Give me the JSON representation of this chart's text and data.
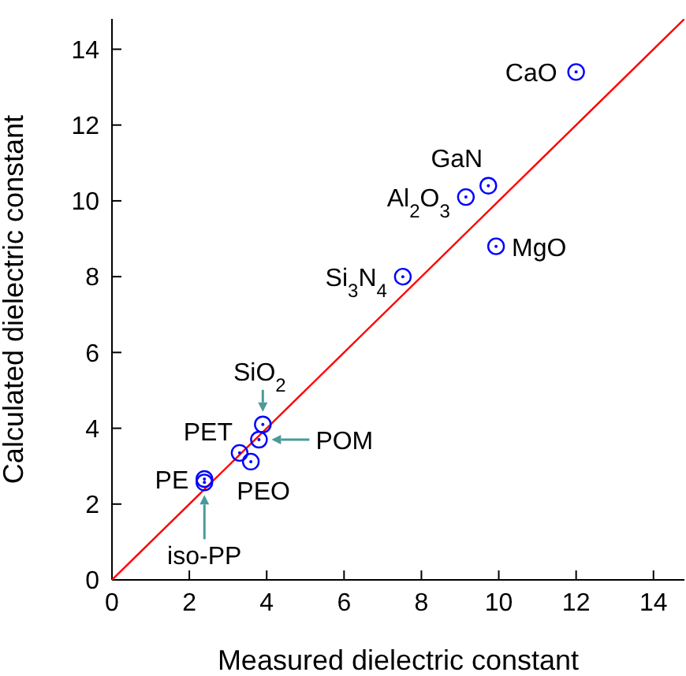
{
  "chart_data": {
    "type": "scatter",
    "xlabel": "Measured dielectric constant",
    "ylabel": "Calculated dielectric constant",
    "xlim": [
      0,
      14.8
    ],
    "ylim": [
      0,
      14.8
    ],
    "xticks": [
      0,
      2,
      4,
      6,
      8,
      10,
      12,
      14
    ],
    "yticks": [
      0,
      2,
      4,
      6,
      8,
      10,
      12,
      14
    ],
    "marker": "circle",
    "series": [
      {
        "type": "line",
        "marker": "none",
        "color": "#ff0000",
        "x": [
          0,
          14.8
        ],
        "values": [
          0,
          14.8
        ]
      },
      {
        "color": "#0000ff",
        "x": [
          12.0,
          9.73,
          9.15,
          9.93,
          7.52,
          3.9,
          3.8,
          3.3,
          3.59,
          2.39,
          2.39
        ],
        "values": [
          13.4,
          10.4,
          10.1,
          8.8,
          8.0,
          4.1,
          3.7,
          3.35,
          3.12,
          2.66,
          2.57
        ]
      }
    ],
    "annotations": [
      {
        "text": "CaO",
        "x": 12.0,
        "y": 13.4
      },
      {
        "text": "GaN",
        "x": 9.73,
        "y": 10.4
      },
      {
        "text": "Al$_{2}$O$_{3}$",
        "x": 9.15,
        "y": 10.1
      },
      {
        "text": "MgO",
        "x": 9.93,
        "y": 8.8
      },
      {
        "text": "Si$_{3}$N$_{4}$",
        "x": 7.52,
        "y": 8.0
      },
      {
        "text": "SiO$_{2}$",
        "x": 3.9,
        "y": 4.1
      },
      {
        "text": "PET",
        "x": 3.3,
        "y": 3.35
      },
      {
        "text": "POM",
        "x": 3.8,
        "y": 3.7
      },
      {
        "text": "PEO",
        "x": 3.59,
        "y": 3.12
      },
      {
        "text": "PE",
        "x": 2.39,
        "y": 2.66
      },
      {
        "text": "iso-PP",
        "x": 2.39,
        "y": 2.57
      }
    ]
  }
}
